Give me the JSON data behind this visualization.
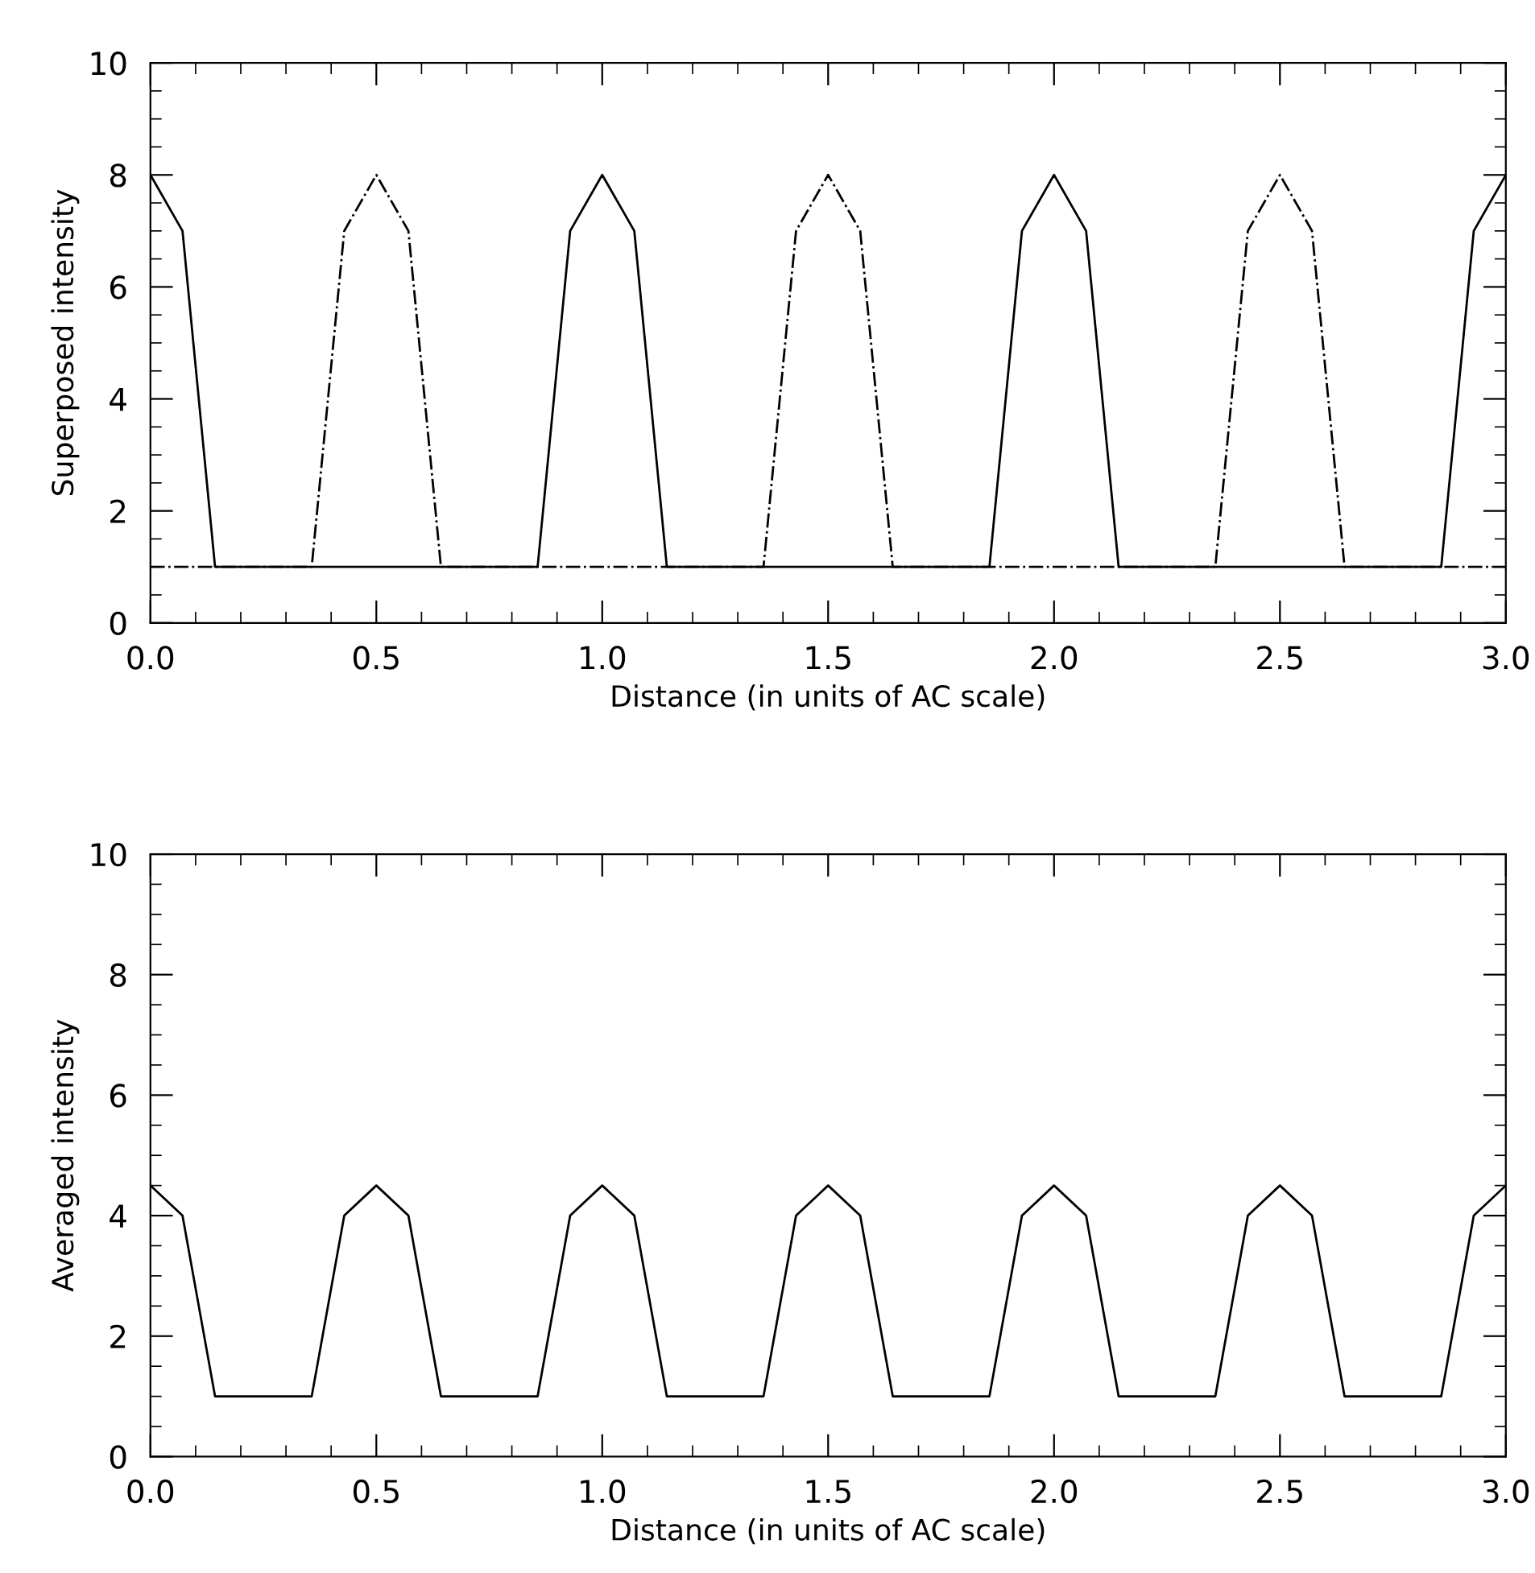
{
  "chart_data": [
    {
      "type": "line",
      "xlabel": "Distance (in units of AC scale)",
      "ylabel": "Superposed intensity",
      "xlim": [
        0,
        3
      ],
      "ylim": [
        0,
        10
      ],
      "xticks": [
        {
          "value": 0,
          "label": "0.0"
        },
        0.5,
        {
          "value": 1,
          "label": "1.0"
        },
        1.5,
        {
          "value": 2,
          "label": "2.0"
        },
        2.5,
        {
          "value": 3,
          "label": "3.0"
        }
      ],
      "yticks": [
        0,
        2,
        4,
        6,
        8,
        10
      ],
      "x": [
        0,
        0.071,
        0.143,
        0.214,
        0.286,
        0.357,
        0.429,
        0.5,
        0.571,
        0.643,
        0.714,
        0.786,
        0.857,
        0.929,
        1.0,
        1.071,
        1.143,
        1.214,
        1.286,
        1.357,
        1.429,
        1.5,
        1.571,
        1.643,
        1.714,
        1.786,
        1.857,
        1.929,
        2.0,
        2.071,
        2.143,
        2.214,
        2.286,
        2.357,
        2.429,
        2.5,
        2.571,
        2.643,
        2.714,
        2.786,
        2.857,
        2.929,
        3.0
      ],
      "series": [
        {
          "color": "#000000",
          "line_style": "solid",
          "values": [
            8,
            7,
            1,
            1,
            1,
            1,
            1,
            1,
            1,
            1,
            1,
            1,
            1,
            7,
            8,
            7,
            1,
            1,
            1,
            1,
            1,
            1,
            1,
            1,
            1,
            1,
            1,
            7,
            8,
            7,
            1,
            1,
            1,
            1,
            1,
            1,
            1,
            1,
            1,
            1,
            1,
            7,
            8
          ]
        },
        {
          "color": "#000000",
          "line_style": "dashdot",
          "values": [
            1,
            1,
            1,
            1,
            1,
            1,
            7,
            8,
            7,
            1,
            1,
            1,
            1,
            1,
            1,
            1,
            1,
            1,
            1,
            1,
            7,
            8,
            7,
            1,
            1,
            1,
            1,
            1,
            1,
            1,
            1,
            1,
            1,
            1,
            7,
            8,
            7,
            1,
            1,
            1,
            1,
            1,
            1
          ]
        }
      ]
    },
    {
      "type": "line",
      "xlabel": "Distance (in units of AC scale)",
      "ylabel": "Averaged intensity",
      "xlim": [
        0,
        3
      ],
      "ylim": [
        0,
        10
      ],
      "xticks": [
        {
          "value": 0,
          "label": "0.0"
        },
        0.5,
        {
          "value": 1,
          "label": "1.0"
        },
        1.5,
        {
          "value": 2,
          "label": "2.0"
        },
        2.5,
        {
          "value": 3,
          "label": "3.0"
        }
      ],
      "yticks": [
        0,
        2,
        4,
        6,
        8,
        10
      ],
      "x": [
        0,
        0.071,
        0.143,
        0.214,
        0.286,
        0.357,
        0.429,
        0.5,
        0.571,
        0.643,
        0.714,
        0.786,
        0.857,
        0.929,
        1.0,
        1.071,
        1.143,
        1.214,
        1.286,
        1.357,
        1.429,
        1.5,
        1.571,
        1.643,
        1.714,
        1.786,
        1.857,
        1.929,
        2.0,
        2.071,
        2.143,
        2.214,
        2.286,
        2.357,
        2.429,
        2.5,
        2.571,
        2.643,
        2.714,
        2.786,
        2.857,
        2.929,
        3.0
      ],
      "series": [
        {
          "color": "#000000",
          "line_style": "solid",
          "values": [
            4.5,
            4,
            1,
            1,
            1,
            1,
            4,
            4.5,
            4,
            1,
            1,
            1,
            1,
            4,
            4.5,
            4,
            1,
            1,
            1,
            1,
            4,
            4.5,
            4,
            1,
            1,
            1,
            1,
            4,
            4.5,
            4,
            1,
            1,
            1,
            1,
            4,
            4.5,
            4,
            1,
            1,
            1,
            1,
            4,
            4.5
          ]
        }
      ]
    }
  ]
}
